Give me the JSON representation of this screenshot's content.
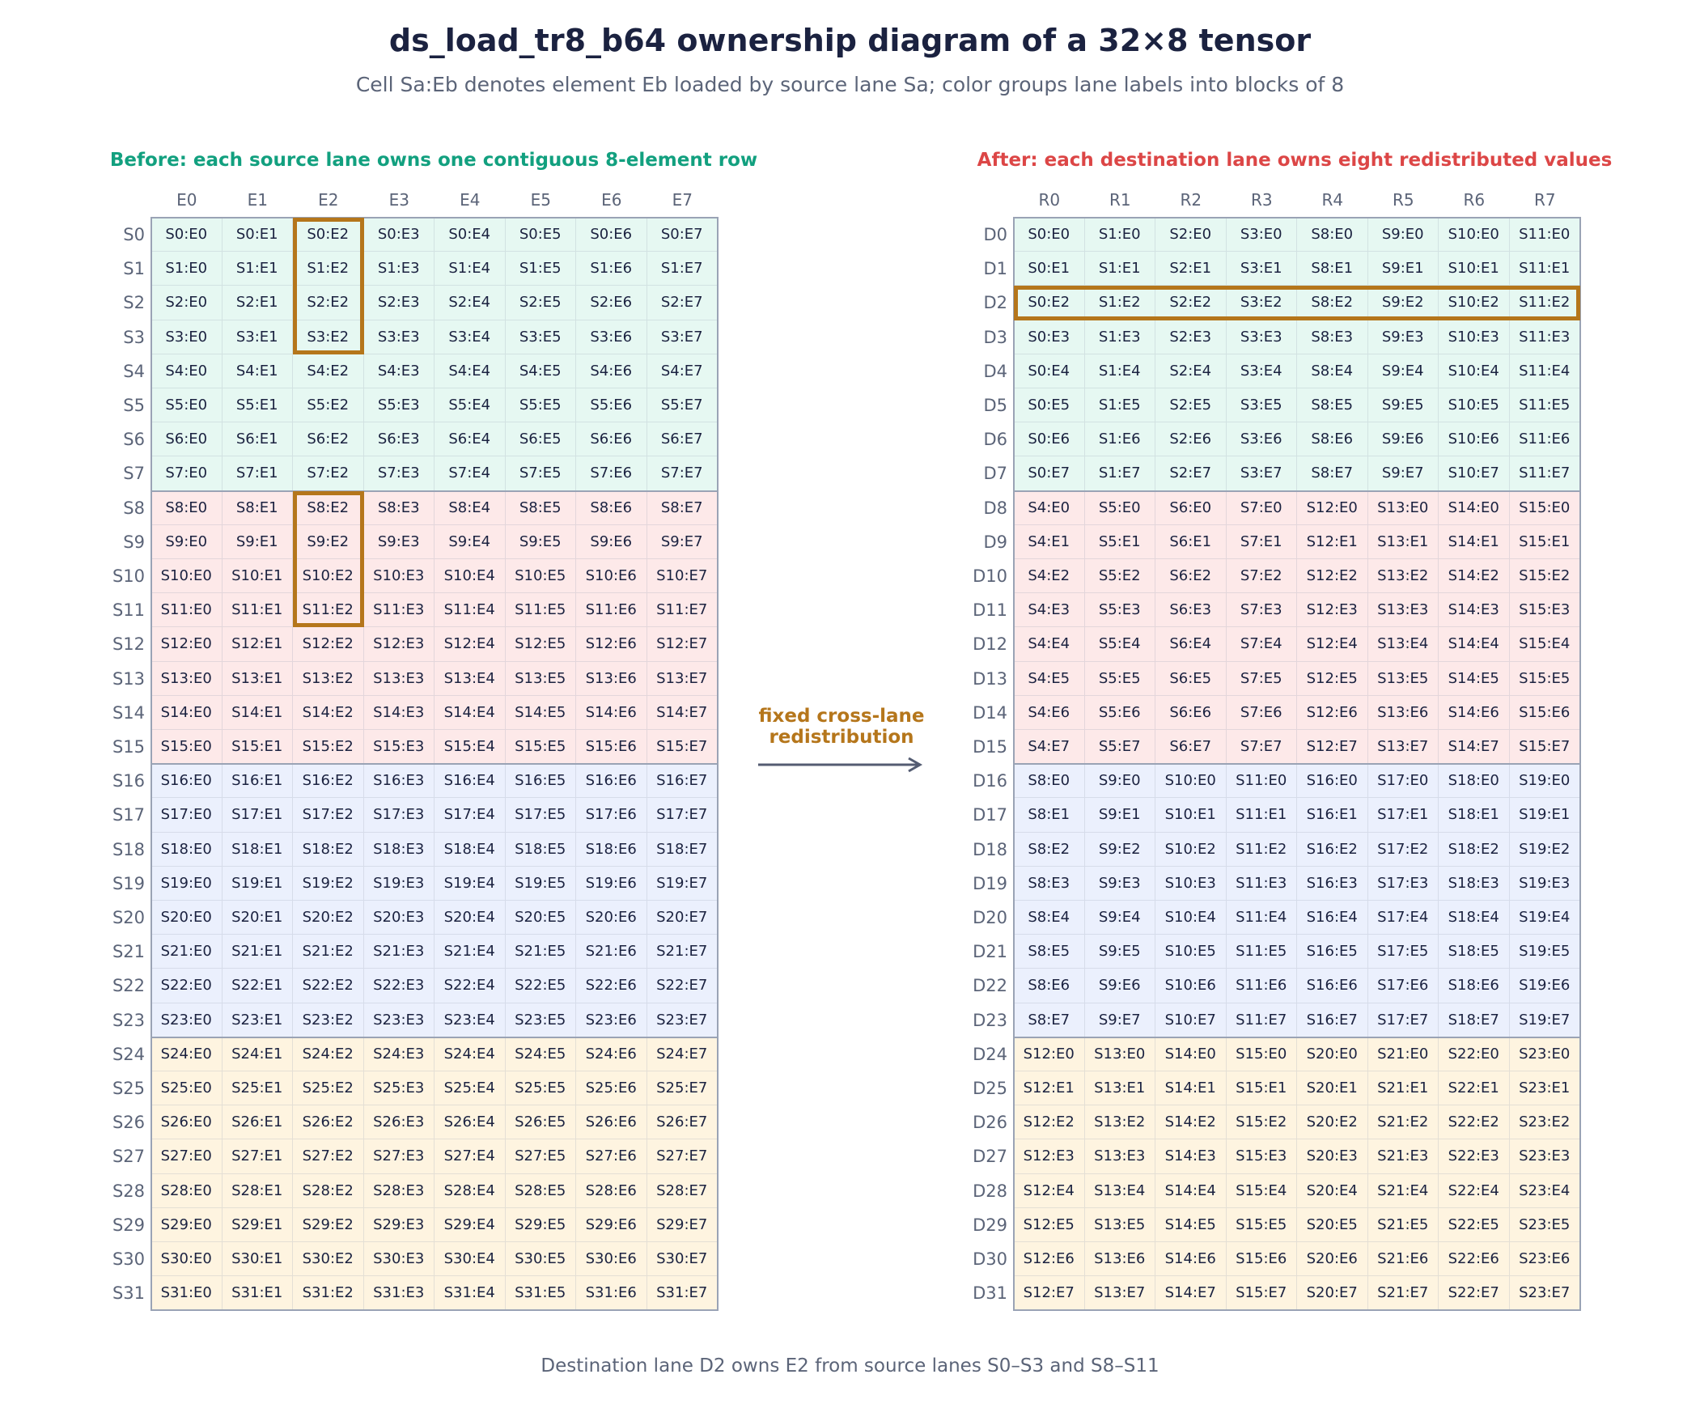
{
  "title": "ds_load_tr8_b64 ownership diagram of a 32×8 tensor",
  "subtitle": "Cell Sa:Eb denotes element Eb loaded by source lane Sa; color groups lane labels into blocks of 8",
  "footer": "Destination lane D2 owns E2 from source lanes S0–S3 and S8–S11",
  "arrow_label_line1": "fixed cross-lane",
  "arrow_label_line2": "redistribution",
  "colors": {
    "before_title": "#12a07f",
    "after_title": "#dc4646",
    "highlight": "#b5761b",
    "group_fills": [
      "#e6f8f2",
      "#fde9e9",
      "#ebf0fd",
      "#fef4e0"
    ],
    "arrow": "#545c72"
  },
  "before": {
    "title": "Before: each source lane owns one contiguous 8-element row",
    "col_labels": [
      "E0",
      "E1",
      "E2",
      "E3",
      "E4",
      "E5",
      "E6",
      "E7"
    ],
    "row_prefix": "S",
    "rows": 32,
    "cell_rule": "row lane label S{r}, element E{c}",
    "highlight": "column E2 for source lanes S0–S3 and S8–S11"
  },
  "after": {
    "title": "After: each destination lane owns eight redistributed values",
    "col_labels": [
      "R0",
      "R1",
      "R2",
      "R3",
      "R4",
      "R5",
      "R6",
      "R7"
    ],
    "row_prefix": "D",
    "rows": 32,
    "cell_rule": "register R{c} of lane D{r} holds S{base+c'}:E{r mod 8}",
    "highlight": "row D2"
  }
}
